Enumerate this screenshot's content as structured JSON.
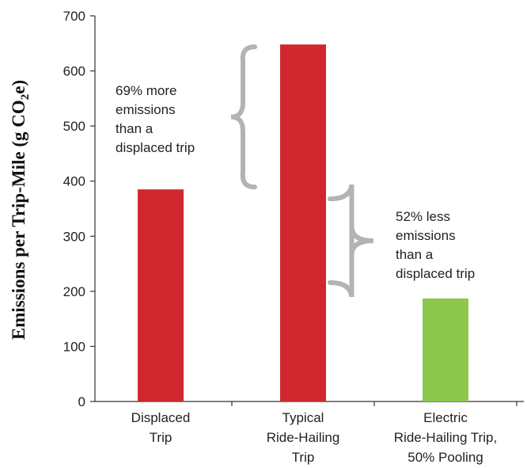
{
  "chart_data": {
    "type": "bar",
    "categories": [
      [
        "Displaced",
        "Trip"
      ],
      [
        "Typical",
        "Ride-Hailing",
        "Trip"
      ],
      [
        "Electric",
        "Ride-Hailing Trip,",
        "50% Pooling"
      ]
    ],
    "values": [
      385,
      648,
      187
    ],
    "colors": [
      "#d0282e",
      "#d0282e",
      "#8cc84b"
    ],
    "ylabel": {
      "main": "Emissions per Trip-Mile (g CO",
      "sub": "2",
      "end": "e)"
    },
    "ylim": [
      0,
      700
    ],
    "yticks": [
      0,
      100,
      200,
      300,
      400,
      500,
      600,
      700
    ],
    "grid": false,
    "annotations": [
      {
        "lines": [
          "69% more",
          "emissions",
          "than a",
          "displaced trip"
        ],
        "brace_from": 385,
        "brace_to": 648
      },
      {
        "lines": [
          "52% less",
          "emissions",
          "than a",
          "displaced trip"
        ],
        "brace_from": 187,
        "brace_to": 385
      }
    ],
    "brace_color": "#b3b3b3"
  }
}
